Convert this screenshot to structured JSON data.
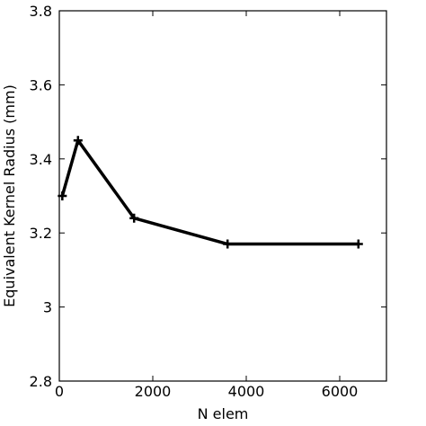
{
  "chart_data": {
    "type": "line",
    "x_label": "N elem",
    "y_label": "Equivalent Kernel Radius (mm)",
    "x": [
      64,
      400,
      1600,
      3600,
      6400
    ],
    "series": [
      {
        "color": "#000000",
        "values": [
          3.3,
          3.45,
          3.24,
          3.17,
          3.17
        ]
      }
    ],
    "xlim": [
      0,
      7000
    ],
    "xticks": [
      0,
      2000,
      4000,
      6000
    ],
    "ylim": [
      2.8,
      3.8
    ],
    "yticks": [
      2.8,
      3,
      3.2,
      3.4,
      3.6,
      3.8
    ],
    "grid": false,
    "marker": "plus"
  }
}
